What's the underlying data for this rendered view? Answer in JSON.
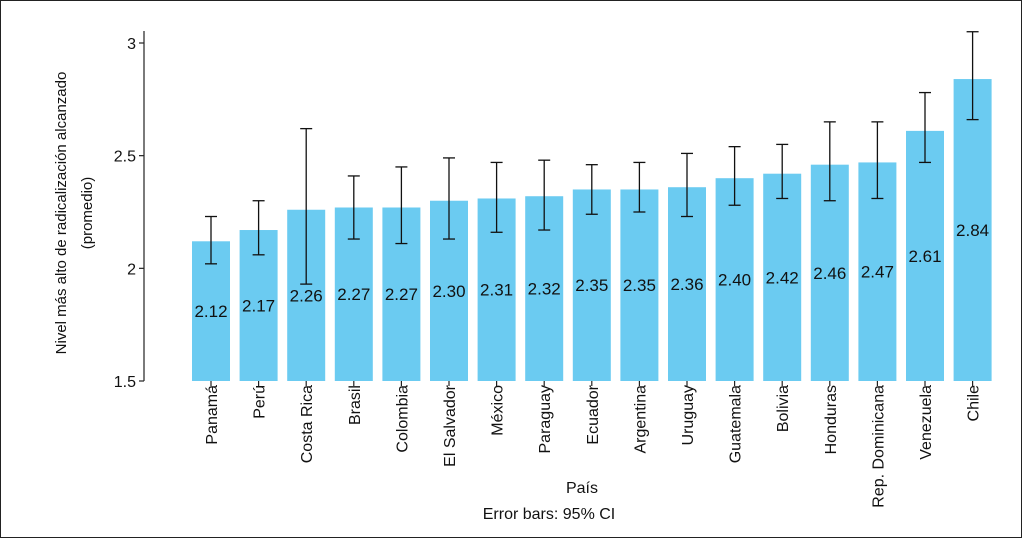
{
  "chart_data": {
    "type": "bar",
    "xlabel": "País",
    "ylabel": [
      "Nivel más alto de radicalización alcanzado",
      "(promedio)"
    ],
    "note": "Error bars: 95% CI",
    "ylim": [
      1.5,
      3.05
    ],
    "yticks": [
      1.5,
      2,
      2.5,
      3
    ],
    "ytick_labels": [
      "1.5",
      "2",
      "2.5",
      "3"
    ],
    "bar_color": "#6bcbf1",
    "categories": [
      "Panamá",
      "Perú",
      "Costa Rica",
      "Brasil",
      "Colombia",
      "El Salvador",
      "México",
      "Paraguay",
      "Ecuador",
      "Argentina",
      "Uruguay",
      "Guatemala",
      "Bolivia",
      "Honduras",
      "Rep. Dominicana",
      "Venezuela",
      "Chile"
    ],
    "values": [
      2.12,
      2.17,
      2.26,
      2.27,
      2.27,
      2.3,
      2.31,
      2.32,
      2.35,
      2.35,
      2.36,
      2.4,
      2.42,
      2.46,
      2.47,
      2.61,
      2.84
    ],
    "value_labels": [
      "2.12",
      "2.17",
      "2.26",
      "2.27",
      "2.27",
      "2.30",
      "2.31",
      "2.32",
      "2.35",
      "2.35",
      "2.36",
      "2.40",
      "2.42",
      "2.46",
      "2.47",
      "2.61",
      "2.84"
    ],
    "ci_low": [
      2.02,
      2.06,
      1.93,
      2.13,
      2.11,
      2.13,
      2.16,
      2.17,
      2.24,
      2.25,
      2.23,
      2.28,
      2.31,
      2.3,
      2.31,
      2.47,
      2.66
    ],
    "ci_high": [
      2.23,
      2.3,
      2.62,
      2.41,
      2.45,
      2.49,
      2.47,
      2.48,
      2.46,
      2.47,
      2.51,
      2.54,
      2.55,
      2.65,
      2.65,
      2.78,
      3.05
    ]
  }
}
